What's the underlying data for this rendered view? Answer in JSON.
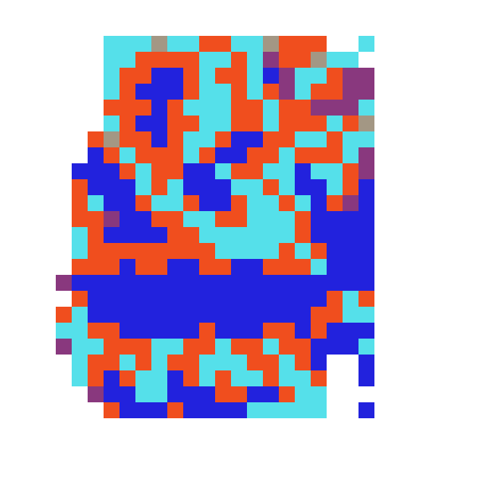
{
  "chart_data": {
    "type": "heatmap",
    "colors": [
      "#55e0ea",
      "#f04e1e",
      "#2222dd"
    ],
    "zlim": [
      0,
      2
    ],
    "tick_labels": false,
    "z": [
      [
        null,
        null,
        null,
        0,
        0,
        0,
        0.5,
        0,
        0,
        1,
        1,
        0,
        0,
        0.5,
        1,
        1,
        1,
        null,
        null,
        0,
        null
      ],
      [
        null,
        null,
        null,
        0,
        0,
        1,
        1,
        1,
        1,
        0,
        0,
        1,
        0,
        1.5,
        1,
        1,
        0.5,
        0,
        0,
        null,
        null
      ],
      [
        null,
        null,
        null,
        0,
        1,
        1,
        2,
        2,
        1,
        0,
        1,
        1,
        0,
        2,
        1.5,
        0,
        0,
        1,
        1.5,
        1.5,
        null
      ],
      [
        null,
        null,
        null,
        0,
        1,
        2,
        2,
        2,
        1,
        0,
        0,
        1,
        0,
        1,
        1.5,
        0,
        1,
        1,
        1.5,
        1.5,
        null
      ],
      [
        null,
        null,
        null,
        1,
        1,
        1,
        2,
        1,
        0,
        0,
        0,
        1,
        1,
        0,
        1,
        1,
        1.5,
        1.5,
        1.5,
        0,
        null
      ],
      [
        null,
        null,
        null,
        0,
        1,
        2,
        2,
        1,
        1,
        0,
        0,
        1,
        1,
        0,
        1,
        1,
        1,
        0,
        1,
        0.5,
        null
      ],
      [
        null,
        null,
        1,
        0.5,
        1,
        1,
        2,
        1,
        0,
        0,
        1,
        2,
        2,
        1,
        1,
        0,
        0,
        1,
        0,
        0,
        null
      ],
      [
        null,
        null,
        2,
        1,
        0,
        1,
        1,
        1,
        0,
        1,
        2,
        2,
        1,
        1,
        0,
        1,
        1,
        1,
        0,
        1.5,
        null
      ],
      [
        null,
        2,
        2,
        2,
        1,
        0,
        1,
        1,
        2,
        2,
        0,
        1,
        1,
        0,
        0,
        2,
        0,
        0,
        1,
        1.5,
        null
      ],
      [
        null,
        1,
        2,
        2,
        2,
        0,
        1,
        0,
        2,
        2,
        2,
        0,
        0,
        1,
        0,
        2,
        2,
        0,
        1,
        2,
        null
      ],
      [
        null,
        1,
        0,
        2,
        2,
        1,
        0,
        0,
        1,
        2,
        2,
        1,
        0,
        0,
        1,
        0,
        2,
        1,
        1.5,
        2,
        null
      ],
      [
        null,
        1,
        1,
        1.5,
        2,
        2,
        1,
        1,
        0,
        0,
        1,
        1,
        0,
        0,
        0,
        1,
        2,
        2,
        2,
        2,
        null
      ],
      [
        null,
        0,
        1,
        2,
        2,
        2,
        2,
        1,
        1,
        0,
        0,
        0,
        0,
        0,
        0,
        1,
        2,
        2,
        2,
        2,
        null
      ],
      [
        null,
        0,
        1,
        1,
        1,
        1,
        1,
        1,
        1,
        1,
        0,
        0,
        0,
        0,
        1,
        0,
        1,
        2,
        2,
        2,
        null
      ],
      [
        null,
        1,
        1,
        1,
        2,
        1,
        1,
        2,
        2,
        1,
        1,
        2,
        2,
        1,
        1,
        1,
        0,
        2,
        2,
        2,
        null
      ],
      [
        1.5,
        2,
        2,
        2,
        2,
        2,
        2,
        2,
        2,
        2,
        2,
        2,
        2,
        2,
        2,
        2,
        2,
        2,
        2,
        2,
        null
      ],
      [
        null,
        1,
        2,
        2,
        2,
        2,
        2,
        2,
        2,
        2,
        2,
        2,
        2,
        2,
        2,
        2,
        2,
        1,
        0,
        1,
        null
      ],
      [
        1,
        0,
        2,
        2,
        2,
        2,
        2,
        2,
        2,
        2,
        2,
        2,
        2,
        2,
        2,
        2,
        1,
        1,
        0,
        0,
        null
      ],
      [
        0,
        0,
        1,
        1,
        2,
        2,
        2,
        2,
        2,
        1,
        2,
        2,
        2,
        1,
        1,
        2,
        1,
        2,
        2,
        2,
        null
      ],
      [
        1.5,
        0,
        0,
        1,
        1,
        1,
        0,
        0,
        1,
        1,
        0,
        1,
        1,
        0,
        1,
        1,
        2,
        2,
        2,
        0,
        null
      ],
      [
        null,
        0,
        1,
        1,
        0,
        1,
        0,
        1,
        1,
        0,
        0,
        0,
        1,
        1,
        0,
        1,
        2,
        null,
        null,
        2,
        null
      ],
      [
        null,
        0,
        1,
        2,
        1,
        0,
        0,
        2,
        1,
        0,
        1,
        0,
        0,
        1,
        0,
        0,
        1,
        null,
        null,
        2,
        null
      ],
      [
        null,
        null,
        1.5,
        2,
        2,
        0,
        0,
        2,
        2,
        2,
        1,
        1,
        2,
        2,
        1,
        0,
        0,
        null,
        null,
        null,
        null
      ],
      [
        null,
        null,
        null,
        1,
        2,
        2,
        2,
        1,
        2,
        2,
        2,
        2,
        0,
        0,
        0,
        0,
        0,
        null,
        null,
        2,
        null
      ]
    ]
  }
}
